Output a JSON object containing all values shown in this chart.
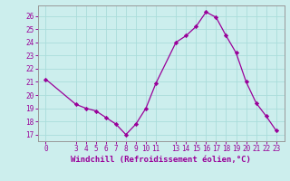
{
  "x": [
    0,
    3,
    4,
    5,
    6,
    7,
    8,
    9,
    10,
    11,
    13,
    14,
    15,
    16,
    17,
    18,
    19,
    20,
    21,
    22,
    23
  ],
  "y": [
    21.2,
    19.3,
    19.0,
    18.8,
    18.3,
    17.8,
    17.0,
    17.8,
    19.0,
    20.9,
    24.0,
    24.5,
    25.2,
    26.3,
    25.9,
    24.5,
    23.2,
    21.0,
    19.4,
    18.4,
    17.3
  ],
  "line_color": "#990099",
  "marker_color": "#990099",
  "bg_color": "#cceeed",
  "grid_color": "#aadddb",
  "xlabel": "Windchill (Refroidissement éolien,°C)",
  "yticks": [
    17,
    18,
    19,
    20,
    21,
    22,
    23,
    24,
    25,
    26
  ],
  "xtick_labels": [
    "0",
    "3",
    "4",
    "5",
    "6",
    "7",
    "8",
    "9",
    "10",
    "11",
    "13",
    "14",
    "15",
    "16",
    "17",
    "18",
    "19",
    "20",
    "21",
    "22",
    "23"
  ],
  "ylim": [
    16.5,
    26.8
  ],
  "xlim": [
    -0.8,
    23.8
  ],
  "xlabel_color": "#990099",
  "tick_color": "#990099",
  "tick_fontsize": 5.5,
  "xlabel_fontsize": 6.5
}
